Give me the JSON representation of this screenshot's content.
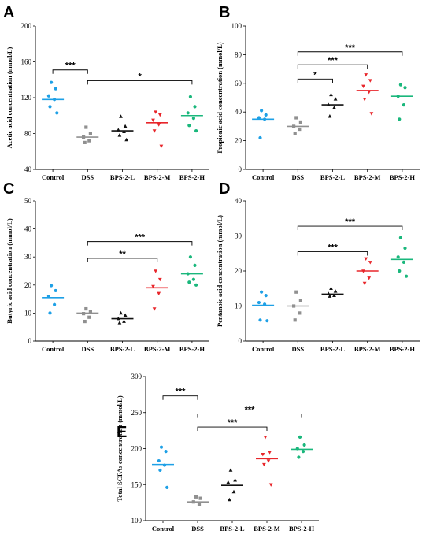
{
  "figure": {
    "colors": {
      "Control": "#1ea0e6",
      "DSS": "#909090",
      "BPS-2-L": "#111111",
      "BPS-2-M": "#e8262b",
      "BPS-2-H": "#1ab77c"
    }
  },
  "chart_data": [
    {
      "panel": "A",
      "type": "scatter",
      "categories": [
        "Control",
        "DSS",
        "BPS-2-L",
        "BPS-2-M",
        "BPS-2-H"
      ],
      "ylabel": "Acetic acid concentration (mmol/L)",
      "ylim": [
        40,
        200
      ],
      "yticks": [
        40,
        80,
        120,
        160,
        200
      ],
      "means": [
        118,
        76,
        83,
        92,
        100
      ],
      "points": [
        [
          137,
          130,
          122,
          118,
          110,
          103
        ],
        [
          87,
          80,
          76,
          72,
          70
        ],
        [
          99,
          88,
          84,
          82,
          78,
          73
        ],
        [
          104,
          101,
          95,
          90,
          83,
          66
        ],
        [
          121,
          110,
          103,
          97,
          89,
          83
        ]
      ],
      "significance": [
        {
          "from": 0,
          "to": 1,
          "label": "***",
          "y": 151
        },
        {
          "from": 1,
          "to": 4,
          "label": "*",
          "y": 139
        }
      ]
    },
    {
      "panel": "B",
      "type": "scatter",
      "categories": [
        "Control",
        "DSS",
        "BPS-2-L",
        "BPS-2-M",
        "BPS-2-H"
      ],
      "ylabel": "Propionic acid concentration (mmol/L)",
      "ylim": [
        0,
        100
      ],
      "yticks": [
        0,
        20,
        40,
        60,
        80,
        100
      ],
      "means": [
        35,
        30,
        45,
        55,
        51
      ],
      "points": [
        [
          41,
          38,
          36,
          35,
          22
        ],
        [
          36,
          33,
          30,
          28,
          25
        ],
        [
          52,
          49,
          45,
          43,
          37
        ],
        [
          66,
          62,
          58,
          54,
          49,
          39
        ],
        [
          59,
          57,
          51,
          45,
          35
        ]
      ],
      "significance": [
        {
          "from": 1,
          "to": 2,
          "label": "*",
          "y": 63
        },
        {
          "from": 1,
          "to": 3,
          "label": "***",
          "y": 73
        },
        {
          "from": 1,
          "to": 4,
          "label": "***",
          "y": 82
        }
      ]
    },
    {
      "panel": "C",
      "type": "scatter",
      "categories": [
        "Control",
        "DSS",
        "BPS-2-L",
        "BPS-2-M",
        "BPS-2-H"
      ],
      "ylabel": "Butyric acid concentration (mmol/L)",
      "ylim": [
        0,
        50
      ],
      "yticks": [
        0,
        10,
        20,
        30,
        40,
        50
      ],
      "means": [
        15.5,
        10,
        8,
        19,
        24
      ],
      "points": [
        [
          19.8,
          18,
          16,
          13,
          10
        ],
        [
          11.5,
          10.5,
          9.8,
          8.5,
          7
        ],
        [
          10,
          9.2,
          8,
          7,
          6.5
        ],
        [
          25,
          22,
          19.5,
          17,
          11.5
        ],
        [
          30,
          27,
          24,
          22,
          21,
          20
        ]
      ],
      "significance": [
        {
          "from": 1,
          "to": 3,
          "label": "**",
          "y": 29.5
        },
        {
          "from": 1,
          "to": 4,
          "label": "***",
          "y": 35.5
        }
      ]
    },
    {
      "panel": "D",
      "type": "scatter",
      "categories": [
        "Control",
        "DSS",
        "BPS-2-L",
        "BPS-2-M",
        "BPS-2-H"
      ],
      "ylabel": "Pentanoic acid concentration (mmol/L)",
      "ylim": [
        0,
        40
      ],
      "yticks": [
        0,
        10,
        20,
        30,
        40
      ],
      "means": [
        10.2,
        10,
        13.4,
        20,
        23.3
      ],
      "points": [
        [
          14,
          13,
          11,
          10.5,
          6,
          5.8
        ],
        [
          14,
          11.5,
          10,
          8,
          6
        ],
        [
          15,
          14.2,
          13.5,
          13,
          12.8
        ],
        [
          23.5,
          22.5,
          20,
          18,
          16.5
        ],
        [
          29.5,
          26.5,
          24,
          22.5,
          20,
          18.5
        ]
      ],
      "significance": [
        {
          "from": 1,
          "to": 3,
          "label": "***",
          "y": 25.5
        },
        {
          "from": 1,
          "to": 4,
          "label": "***",
          "y": 32.8
        }
      ]
    },
    {
      "panel": "E",
      "type": "scatter",
      "categories": [
        "Control",
        "DSS",
        "BPS-2-L",
        "BPS-2-M",
        "BPS-2-H"
      ],
      "ylabel": "Total SCFAs concentration (mmol/L)",
      "ylim": [
        100,
        300
      ],
      "yticks": [
        100,
        150,
        200,
        250,
        300
      ],
      "means": [
        178,
        126,
        149,
        186,
        199
      ],
      "points": [
        [
          202,
          196,
          183,
          177,
          170,
          146
        ],
        [
          133,
          131,
          126,
          122
        ],
        [
          170,
          156,
          153,
          140,
          129
        ],
        [
          216,
          195,
          192,
          183,
          178,
          150
        ],
        [
          216,
          205,
          200,
          196,
          188
        ]
      ],
      "significance": [
        {
          "from": 0,
          "to": 1,
          "label": "***",
          "y": 273
        },
        {
          "from": 1,
          "to": 3,
          "label": "***",
          "y": 230
        },
        {
          "from": 1,
          "to": 4,
          "label": "***",
          "y": 248
        }
      ]
    }
  ]
}
